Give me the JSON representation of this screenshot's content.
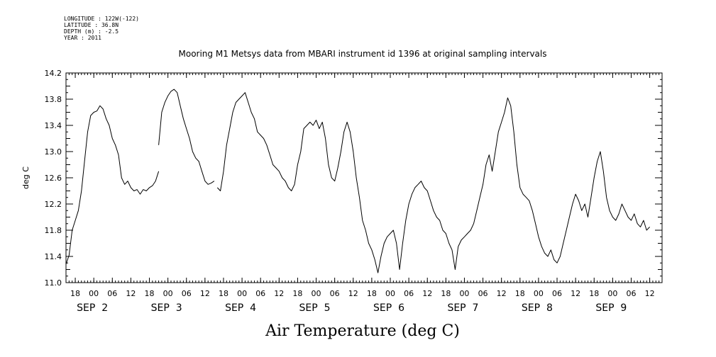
{
  "header": {
    "meta": [
      "LONGITUDE : 122W(-122)",
      "LATITUDE : 36.8N",
      "DEPTH (m) : -2.5",
      "YEAR : 2011"
    ],
    "title": "Mooring M1 Metsys data from MBARI instrument id 1396 at original sampling intervals"
  },
  "chart_data": {
    "type": "line",
    "title": "Mooring M1 Metsys data from MBARI instrument id 1396 at original sampling intervals",
    "xlabel": "Air Temperature (deg C)",
    "ylabel": "deg C",
    "xlim": [
      "2011-09-01T15:00",
      "2011-09-09T16:00"
    ],
    "ylim": [
      11.0,
      14.2
    ],
    "yticks": [
      "11.0",
      "11.4",
      "11.8",
      "12.2",
      "12.6",
      "13.0",
      "13.4",
      "13.8",
      "14.2"
    ],
    "xticks": [
      {
        "label": "18",
        "time": "2011-09-01T18:00"
      },
      {
        "label": "00",
        "time": "2011-09-02T00:00"
      },
      {
        "label": "06",
        "time": "2011-09-02T06:00"
      },
      {
        "label": "12",
        "time": "2011-09-02T12:00"
      },
      {
        "label": "18",
        "time": "2011-09-02T18:00"
      },
      {
        "label": "00",
        "time": "2011-09-03T00:00"
      },
      {
        "label": "06",
        "time": "2011-09-03T06:00"
      },
      {
        "label": "12",
        "time": "2011-09-03T12:00"
      },
      {
        "label": "18",
        "time": "2011-09-03T18:00"
      },
      {
        "label": "00",
        "time": "2011-09-04T00:00"
      },
      {
        "label": "06",
        "time": "2011-09-04T06:00"
      },
      {
        "label": "12",
        "time": "2011-09-04T12:00"
      },
      {
        "label": "18",
        "time": "2011-09-04T18:00"
      },
      {
        "label": "00",
        "time": "2011-09-05T00:00"
      },
      {
        "label": "06",
        "time": "2011-09-05T06:00"
      },
      {
        "label": "12",
        "time": "2011-09-05T12:00"
      },
      {
        "label": "18",
        "time": "2011-09-05T18:00"
      },
      {
        "label": "00",
        "time": "2011-09-06T00:00"
      },
      {
        "label": "06",
        "time": "2011-09-06T06:00"
      },
      {
        "label": "12",
        "time": "2011-09-06T12:00"
      },
      {
        "label": "18",
        "time": "2011-09-06T18:00"
      },
      {
        "label": "00",
        "time": "2011-09-07T00:00"
      },
      {
        "label": "06",
        "time": "2011-09-07T06:00"
      },
      {
        "label": "12",
        "time": "2011-09-07T12:00"
      },
      {
        "label": "18",
        "time": "2011-09-07T18:00"
      },
      {
        "label": "00",
        "time": "2011-09-08T00:00"
      },
      {
        "label": "06",
        "time": "2011-09-08T06:00"
      },
      {
        "label": "12",
        "time": "2011-09-08T12:00"
      },
      {
        "label": "18",
        "time": "2011-09-08T18:00"
      },
      {
        "label": "00",
        "time": "2011-09-09T00:00"
      },
      {
        "label": "06",
        "time": "2011-09-09T06:00"
      },
      {
        "label": "12",
        "time": "2011-09-09T12:00"
      }
    ],
    "day_labels": [
      {
        "label": "SEP  2",
        "time": "2011-09-02T00:00"
      },
      {
        "label": "SEP  3",
        "time": "2011-09-03T00:00"
      },
      {
        "label": "SEP  4",
        "time": "2011-09-04T00:00"
      },
      {
        "label": "SEP  5",
        "time": "2011-09-05T00:00"
      },
      {
        "label": "SEP  6",
        "time": "2011-09-06T00:00"
      },
      {
        "label": "SEP  7",
        "time": "2011-09-07T00:00"
      },
      {
        "label": "SEP  8",
        "time": "2011-09-08T00:00"
      },
      {
        "label": "SEP  9",
        "time": "2011-09-09T00:00"
      }
    ],
    "grid": false,
    "series": [
      {
        "segments": [
          [
            [
              "2011-09-01T15:00",
              11.28
            ],
            [
              "2011-09-01T16:00",
              11.42
            ],
            [
              "2011-09-01T17:00",
              11.8
            ],
            [
              "2011-09-01T18:00",
              11.95
            ],
            [
              "2011-09-01T19:00",
              12.1
            ],
            [
              "2011-09-01T20:00",
              12.4
            ],
            [
              "2011-09-01T21:00",
              12.85
            ],
            [
              "2011-09-01T22:00",
              13.3
            ],
            [
              "2011-09-01T23:00",
              13.55
            ],
            [
              "2011-09-02T00:00",
              13.6
            ],
            [
              "2011-09-02T01:00",
              13.62
            ],
            [
              "2011-09-02T02:00",
              13.7
            ],
            [
              "2011-09-02T03:00",
              13.65
            ],
            [
              "2011-09-02T04:00",
              13.5
            ],
            [
              "2011-09-02T05:00",
              13.4
            ],
            [
              "2011-09-02T06:00",
              13.2
            ],
            [
              "2011-09-02T07:00",
              13.1
            ],
            [
              "2011-09-02T08:00",
              12.95
            ],
            [
              "2011-09-02T09:00",
              12.6
            ],
            [
              "2011-09-02T10:00",
              12.5
            ],
            [
              "2011-09-02T11:00",
              12.55
            ],
            [
              "2011-09-02T12:00",
              12.45
            ],
            [
              "2011-09-02T13:00",
              12.4
            ],
            [
              "2011-09-02T14:00",
              12.42
            ],
            [
              "2011-09-02T15:00",
              12.35
            ],
            [
              "2011-09-02T16:00",
              12.42
            ],
            [
              "2011-09-02T17:00",
              12.4
            ],
            [
              "2011-09-02T18:00",
              12.45
            ],
            [
              "2011-09-02T19:00",
              12.48
            ],
            [
              "2011-09-02T20:00",
              12.55
            ],
            [
              "2011-09-02T21:00",
              12.7
            ]
          ],
          [
            [
              "2011-09-02T21:00",
              13.1
            ],
            [
              "2011-09-02T22:00",
              13.6
            ],
            [
              "2011-09-02T23:00",
              13.75
            ],
            [
              "2011-09-03T00:00",
              13.85
            ],
            [
              "2011-09-03T01:00",
              13.92
            ],
            [
              "2011-09-03T02:00",
              13.95
            ],
            [
              "2011-09-03T03:00",
              13.9
            ],
            [
              "2011-09-03T04:00",
              13.7
            ],
            [
              "2011-09-03T05:00",
              13.5
            ],
            [
              "2011-09-03T06:00",
              13.35
            ],
            [
              "2011-09-03T07:00",
              13.2
            ],
            [
              "2011-09-03T08:00",
              13.0
            ],
            [
              "2011-09-03T09:00",
              12.9
            ],
            [
              "2011-09-03T10:00",
              12.85
            ],
            [
              "2011-09-03T11:00",
              12.7
            ],
            [
              "2011-09-03T12:00",
              12.55
            ],
            [
              "2011-09-03T13:00",
              12.5
            ],
            [
              "2011-09-03T14:00",
              12.52
            ],
            [
              "2011-09-03T15:00",
              12.55
            ]
          ],
          [
            [
              "2011-09-03T16:00",
              12.45
            ],
            [
              "2011-09-03T17:00",
              12.4
            ],
            [
              "2011-09-03T18:00",
              12.7
            ],
            [
              "2011-09-03T19:00",
              13.1
            ],
            [
              "2011-09-03T20:00",
              13.35
            ],
            [
              "2011-09-03T21:00",
              13.6
            ],
            [
              "2011-09-03T22:00",
              13.75
            ],
            [
              "2011-09-03T23:00",
              13.8
            ],
            [
              "2011-09-04T00:00",
              13.85
            ],
            [
              "2011-09-04T01:00",
              13.9
            ],
            [
              "2011-09-04T02:00",
              13.75
            ],
            [
              "2011-09-04T03:00",
              13.6
            ],
            [
              "2011-09-04T04:00",
              13.5
            ],
            [
              "2011-09-04T05:00",
              13.3
            ],
            [
              "2011-09-04T06:00",
              13.25
            ],
            [
              "2011-09-04T07:00",
              13.2
            ],
            [
              "2011-09-04T08:00",
              13.1
            ],
            [
              "2011-09-04T09:00",
              12.95
            ],
            [
              "2011-09-04T10:00",
              12.8
            ],
            [
              "2011-09-04T11:00",
              12.75
            ],
            [
              "2011-09-04T12:00",
              12.7
            ],
            [
              "2011-09-04T13:00",
              12.6
            ],
            [
              "2011-09-04T14:00",
              12.55
            ],
            [
              "2011-09-04T15:00",
              12.45
            ],
            [
              "2011-09-04T16:00",
              12.4
            ],
            [
              "2011-09-04T17:00",
              12.5
            ],
            [
              "2011-09-04T18:00",
              12.8
            ],
            [
              "2011-09-04T19:00",
              13.0
            ],
            [
              "2011-09-04T20:00",
              13.35
            ],
            [
              "2011-09-04T21:00",
              13.4
            ],
            [
              "2011-09-04T22:00",
              13.45
            ],
            [
              "2011-09-04T23:00",
              13.4
            ],
            [
              "2011-09-05T00:00",
              13.48
            ],
            [
              "2011-09-05T01:00",
              13.35
            ],
            [
              "2011-09-05T02:00",
              13.45
            ],
            [
              "2011-09-05T03:00",
              13.2
            ],
            [
              "2011-09-05T04:00",
              12.8
            ],
            [
              "2011-09-05T05:00",
              12.6
            ],
            [
              "2011-09-05T06:00",
              12.55
            ],
            [
              "2011-09-05T07:00",
              12.75
            ],
            [
              "2011-09-05T08:00",
              13.0
            ],
            [
              "2011-09-05T09:00",
              13.3
            ],
            [
              "2011-09-05T10:00",
              13.45
            ],
            [
              "2011-09-05T11:00",
              13.3
            ],
            [
              "2011-09-05T12:00",
              13.0
            ],
            [
              "2011-09-05T13:00",
              12.6
            ],
            [
              "2011-09-05T14:00",
              12.3
            ],
            [
              "2011-09-05T15:00",
              11.95
            ],
            [
              "2011-09-05T16:00",
              11.8
            ],
            [
              "2011-09-05T17:00",
              11.6
            ],
            [
              "2011-09-05T18:00",
              11.5
            ],
            [
              "2011-09-05T19:00",
              11.35
            ],
            [
              "2011-09-05T20:00",
              11.15
            ],
            [
              "2011-09-05T21:00",
              11.4
            ],
            [
              "2011-09-05T22:00",
              11.6
            ],
            [
              "2011-09-05T23:00",
              11.7
            ],
            [
              "2011-09-06T00:00",
              11.75
            ],
            [
              "2011-09-06T01:00",
              11.8
            ],
            [
              "2011-09-06T02:00",
              11.6
            ],
            [
              "2011-09-06T03:00",
              11.2
            ],
            [
              "2011-09-06T04:00",
              11.6
            ],
            [
              "2011-09-06T05:00",
              11.95
            ],
            [
              "2011-09-06T06:00",
              12.2
            ],
            [
              "2011-09-06T07:00",
              12.35
            ],
            [
              "2011-09-06T08:00",
              12.45
            ],
            [
              "2011-09-06T09:00",
              12.5
            ],
            [
              "2011-09-06T10:00",
              12.55
            ],
            [
              "2011-09-06T11:00",
              12.45
            ],
            [
              "2011-09-06T12:00",
              12.4
            ],
            [
              "2011-09-06T13:00",
              12.25
            ],
            [
              "2011-09-06T14:00",
              12.1
            ],
            [
              "2011-09-06T15:00",
              12.0
            ],
            [
              "2011-09-06T16:00",
              11.95
            ],
            [
              "2011-09-06T17:00",
              11.8
            ],
            [
              "2011-09-06T18:00",
              11.75
            ],
            [
              "2011-09-06T19:00",
              11.6
            ],
            [
              "2011-09-06T20:00",
              11.5
            ],
            [
              "2011-09-06T21:00",
              11.2
            ],
            [
              "2011-09-06T22:00",
              11.55
            ],
            [
              "2011-09-06T23:00",
              11.65
            ],
            [
              "2011-09-07T00:00",
              11.7
            ],
            [
              "2011-09-07T01:00",
              11.75
            ],
            [
              "2011-09-07T02:00",
              11.8
            ],
            [
              "2011-09-07T03:00",
              11.9
            ],
            [
              "2011-09-07T04:00",
              12.1
            ],
            [
              "2011-09-07T05:00",
              12.3
            ],
            [
              "2011-09-07T06:00",
              12.5
            ],
            [
              "2011-09-07T07:00",
              12.8
            ],
            [
              "2011-09-07T08:00",
              12.95
            ],
            [
              "2011-09-07T09:00",
              12.7
            ],
            [
              "2011-09-07T10:00",
              13.0
            ],
            [
              "2011-09-07T11:00",
              13.3
            ],
            [
              "2011-09-07T12:00",
              13.45
            ],
            [
              "2011-09-07T13:00",
              13.6
            ],
            [
              "2011-09-07T14:00",
              13.82
            ],
            [
              "2011-09-07T15:00",
              13.7
            ],
            [
              "2011-09-07T16:00",
              13.3
            ],
            [
              "2011-09-07T17:00",
              12.8
            ],
            [
              "2011-09-07T18:00",
              12.45
            ],
            [
              "2011-09-07T19:00",
              12.35
            ],
            [
              "2011-09-07T20:00",
              12.3
            ],
            [
              "2011-09-07T21:00",
              12.25
            ],
            [
              "2011-09-07T22:00",
              12.1
            ],
            [
              "2011-09-07T23:00",
              11.9
            ],
            [
              "2011-09-08T00:00",
              11.7
            ],
            [
              "2011-09-08T01:00",
              11.55
            ],
            [
              "2011-09-08T02:00",
              11.45
            ],
            [
              "2011-09-08T03:00",
              11.4
            ],
            [
              "2011-09-08T04:00",
              11.5
            ],
            [
              "2011-09-08T05:00",
              11.35
            ],
            [
              "2011-09-08T06:00",
              11.3
            ],
            [
              "2011-09-08T07:00",
              11.4
            ],
            [
              "2011-09-08T08:00",
              11.6
            ],
            [
              "2011-09-08T09:00",
              11.8
            ],
            [
              "2011-09-08T10:00",
              12.0
            ],
            [
              "2011-09-08T11:00",
              12.2
            ],
            [
              "2011-09-08T12:00",
              12.35
            ],
            [
              "2011-09-08T13:00",
              12.25
            ],
            [
              "2011-09-08T14:00",
              12.1
            ],
            [
              "2011-09-08T15:00",
              12.2
            ],
            [
              "2011-09-08T16:00",
              12.0
            ],
            [
              "2011-09-08T17:00",
              12.3
            ],
            [
              "2011-09-08T18:00",
              12.6
            ],
            [
              "2011-09-08T19:00",
              12.85
            ],
            [
              "2011-09-08T20:00",
              13.0
            ],
            [
              "2011-09-08T21:00",
              12.7
            ],
            [
              "2011-09-08T22:00",
              12.3
            ],
            [
              "2011-09-08T23:00",
              12.1
            ],
            [
              "2011-09-09T00:00",
              12.0
            ],
            [
              "2011-09-09T01:00",
              11.95
            ],
            [
              "2011-09-09T02:00",
              12.05
            ],
            [
              "2011-09-09T03:00",
              12.2
            ],
            [
              "2011-09-09T04:00",
              12.1
            ],
            [
              "2011-09-09T05:00",
              12.0
            ],
            [
              "2011-09-09T06:00",
              11.95
            ],
            [
              "2011-09-09T07:00",
              12.05
            ],
            [
              "2011-09-09T08:00",
              11.9
            ],
            [
              "2011-09-09T09:00",
              11.85
            ],
            [
              "2011-09-09T10:00",
              11.95
            ],
            [
              "2011-09-09T11:00",
              11.8
            ],
            [
              "2011-09-09T12:00",
              11.85
            ]
          ]
        ]
      }
    ]
  }
}
